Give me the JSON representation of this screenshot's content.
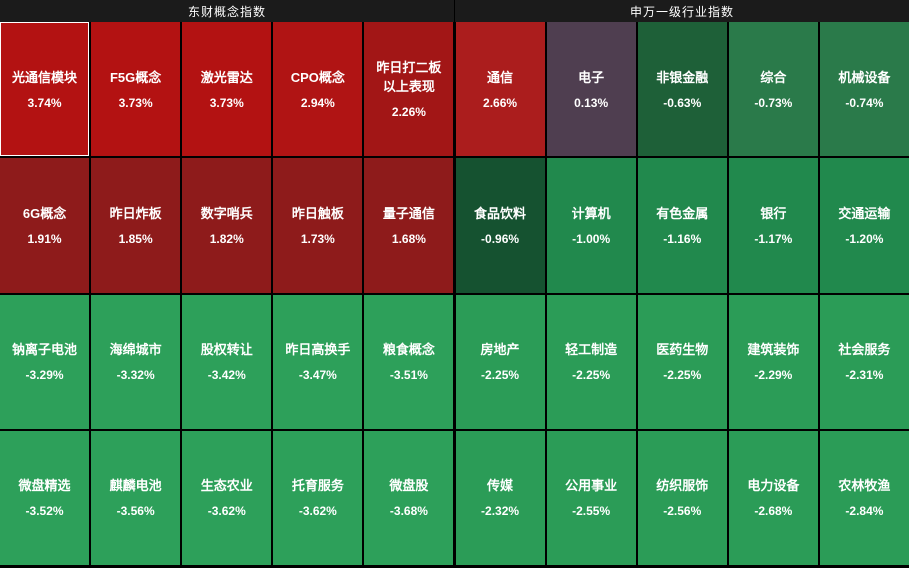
{
  "colors": {
    "background": "#000000",
    "header_bg": "#1b1b1b",
    "text": "#ffffff",
    "selected_border": "#ffffff",
    "strong_red": "#b31212",
    "dark_red": "#8e1b1b",
    "flat_purple": "#4f3e50",
    "dark_green": "#1e6038",
    "mid_green": "#21894d",
    "bright_green": "#2da05a"
  },
  "chart_data": {
    "type": "heatmap",
    "sections": [
      {
        "title": "东财概念指数",
        "rows": [
          [
            {
              "name": "光通信模块",
              "change": "3.74%",
              "value": 3.74,
              "bg": "#b31212",
              "selected": true
            },
            {
              "name": "F5G概念",
              "change": "3.73%",
              "value": 3.73,
              "bg": "#b31212"
            },
            {
              "name": "激光雷达",
              "change": "3.73%",
              "value": 3.73,
              "bg": "#b31212"
            },
            {
              "name": "CPO概念",
              "change": "2.94%",
              "value": 2.94,
              "bg": "#b01414"
            },
            {
              "name": "昨日打二板以上表现",
              "change": "2.26%",
              "value": 2.26,
              "bg": "#a21616"
            }
          ],
          [
            {
              "name": "6G概念",
              "change": "1.91%",
              "value": 1.91,
              "bg": "#8e1b1b"
            },
            {
              "name": "昨日炸板",
              "change": "1.85%",
              "value": 1.85,
              "bg": "#8e1b1b"
            },
            {
              "name": "数字哨兵",
              "change": "1.82%",
              "value": 1.82,
              "bg": "#8e1b1b"
            },
            {
              "name": "昨日触板",
              "change": "1.73%",
              "value": 1.73,
              "bg": "#8e1b1b"
            },
            {
              "name": "量子通信",
              "change": "1.68%",
              "value": 1.68,
              "bg": "#8e1b1b"
            }
          ],
          [
            {
              "name": "钠离子电池",
              "change": "-3.29%",
              "value": -3.29,
              "bg": "#2da05a"
            },
            {
              "name": "海绵城市",
              "change": "-3.32%",
              "value": -3.32,
              "bg": "#2da05a"
            },
            {
              "name": "股权转让",
              "change": "-3.42%",
              "value": -3.42,
              "bg": "#2da05a"
            },
            {
              "name": "昨日高换手",
              "change": "-3.47%",
              "value": -3.47,
              "bg": "#2da05a"
            },
            {
              "name": "粮食概念",
              "change": "-3.51%",
              "value": -3.51,
              "bg": "#2da05a"
            }
          ],
          [
            {
              "name": "微盘精选",
              "change": "-3.52%",
              "value": -3.52,
              "bg": "#2da05a"
            },
            {
              "name": "麒麟电池",
              "change": "-3.56%",
              "value": -3.56,
              "bg": "#2da05a"
            },
            {
              "name": "生态农业",
              "change": "-3.62%",
              "value": -3.62,
              "bg": "#2da05a"
            },
            {
              "name": "托育服务",
              "change": "-3.62%",
              "value": -3.62,
              "bg": "#2da05a"
            },
            {
              "name": "微盘股",
              "change": "-3.68%",
              "value": -3.68,
              "bg": "#2da05a"
            }
          ]
        ]
      },
      {
        "title": "申万一级行业指数",
        "rows": [
          [
            {
              "name": "通信",
              "change": "2.66%",
              "value": 2.66,
              "bg": "#ab1d1d"
            },
            {
              "name": "电子",
              "change": "0.13%",
              "value": 0.13,
              "bg": "#4f3e50"
            },
            {
              "name": "非银金融",
              "change": "-0.63%",
              "value": -0.63,
              "bg": "#1e6038"
            },
            {
              "name": "综合",
              "change": "-0.73%",
              "value": -0.73,
              "bg": "#2a7a4a"
            },
            {
              "name": "机械设备",
              "change": "-0.74%",
              "value": -0.74,
              "bg": "#2a7a4a"
            }
          ],
          [
            {
              "name": "食品饮料",
              "change": "-0.96%",
              "value": -0.96,
              "bg": "#155230"
            },
            {
              "name": "计算机",
              "change": "-1.00%",
              "value": -1.0,
              "bg": "#21894d"
            },
            {
              "name": "有色金属",
              "change": "-1.16%",
              "value": -1.16,
              "bg": "#21894d"
            },
            {
              "name": "银行",
              "change": "-1.17%",
              "value": -1.17,
              "bg": "#21894d"
            },
            {
              "name": "交通运输",
              "change": "-1.20%",
              "value": -1.2,
              "bg": "#21894d"
            }
          ],
          [
            {
              "name": "房地产",
              "change": "-2.25%",
              "value": -2.25,
              "bg": "#2b9c57"
            },
            {
              "name": "轻工制造",
              "change": "-2.25%",
              "value": -2.25,
              "bg": "#2b9c57"
            },
            {
              "name": "医药生物",
              "change": "-2.25%",
              "value": -2.25,
              "bg": "#2b9c57"
            },
            {
              "name": "建筑装饰",
              "change": "-2.29%",
              "value": -2.29,
              "bg": "#2b9c57"
            },
            {
              "name": "社会服务",
              "change": "-2.31%",
              "value": -2.31,
              "bg": "#2b9c57"
            }
          ],
          [
            {
              "name": "传媒",
              "change": "-2.32%",
              "value": -2.32,
              "bg": "#2b9c57"
            },
            {
              "name": "公用事业",
              "change": "-2.55%",
              "value": -2.55,
              "bg": "#2b9c57"
            },
            {
              "name": "纺织服饰",
              "change": "-2.56%",
              "value": -2.56,
              "bg": "#2b9c57"
            },
            {
              "name": "电力设备",
              "change": "-2.68%",
              "value": -2.68,
              "bg": "#2b9c57"
            },
            {
              "name": "农林牧渔",
              "change": "-2.84%",
              "value": -2.84,
              "bg": "#2b9c57"
            }
          ]
        ]
      }
    ]
  }
}
